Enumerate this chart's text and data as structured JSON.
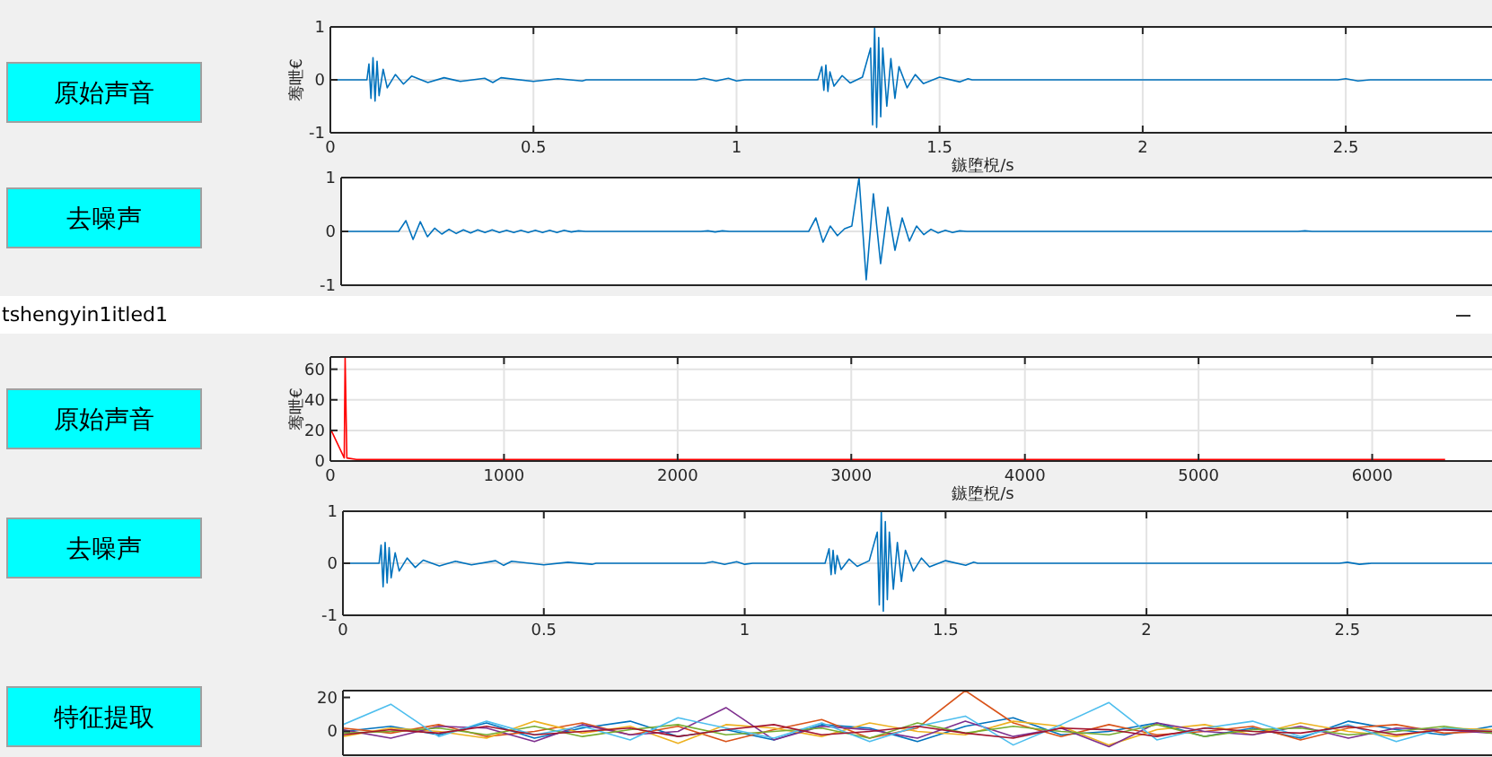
{
  "chart_data": [
    {
      "type": "line",
      "xlabel": "鏃堕棿/s",
      "ylabel": "骞呭€",
      "annotations": [
        "原始声音"
      ],
      "xlim": [
        0,
        2.86
      ],
      "xticks": [
        0,
        0.5,
        1,
        1.5,
        2,
        2.5
      ],
      "ylim": [
        -1,
        1
      ],
      "yticks": [
        -1,
        0,
        1
      ],
      "grid": true,
      "series": [
        {
          "color": "#0072bd",
          "x": [
            0,
            0.09,
            0.095,
            0.1,
            0.105,
            0.11,
            0.115,
            0.12,
            0.13,
            0.14,
            0.16,
            0.18,
            0.2,
            0.24,
            0.28,
            0.32,
            0.38,
            0.4,
            0.42,
            0.5,
            0.56,
            0.62,
            0.63,
            0.9,
            0.92,
            0.95,
            0.98,
            1.0,
            1.02,
            1.2,
            1.21,
            1.215,
            1.22,
            1.225,
            1.23,
            1.24,
            1.26,
            1.28,
            1.31,
            1.33,
            1.335,
            1.34,
            1.345,
            1.35,
            1.355,
            1.36,
            1.37,
            1.38,
            1.39,
            1.4,
            1.42,
            1.44,
            1.46,
            1.5,
            1.55,
            1.57,
            1.58,
            2.48,
            2.5,
            2.53,
            2.56,
            2.86
          ],
          "values": [
            0,
            0,
            0.3,
            -0.35,
            0.42,
            -0.4,
            0.35,
            -0.3,
            0.2,
            -0.15,
            0.1,
            -0.08,
            0.07,
            -0.05,
            0.04,
            -0.03,
            0.03,
            -0.05,
            0.04,
            -0.03,
            0.02,
            -0.02,
            0,
            0,
            0.03,
            -0.02,
            0.03,
            -0.02,
            0,
            0,
            0.25,
            -0.2,
            0.28,
            -0.22,
            0.15,
            -0.12,
            0.08,
            -0.06,
            0.05,
            0.6,
            -0.85,
            1.0,
            -0.9,
            0.8,
            -0.7,
            0.6,
            -0.5,
            0.4,
            -0.35,
            0.25,
            -0.15,
            0.1,
            -0.07,
            0.05,
            -0.04,
            0.02,
            0,
            0,
            0.02,
            -0.02,
            0,
            0
          ]
        }
      ]
    },
    {
      "type": "line",
      "annotations": [
        "去噪声"
      ],
      "categories": [
        null,
        null,
        null,
        null,
        null,
        null,
        null,
        null,
        null,
        null,
        null,
        null,
        null,
        null,
        null,
        null,
        null,
        null,
        null,
        null,
        null,
        null,
        null,
        null,
        null,
        null,
        null,
        null,
        null,
        null,
        null,
        null,
        null,
        null,
        null,
        null,
        null,
        null,
        null,
        null,
        null,
        null,
        null,
        null,
        null,
        null,
        null,
        null,
        null,
        null,
        null,
        null,
        null,
        null,
        null,
        null,
        null,
        null,
        null,
        null,
        null,
        null,
        null,
        null,
        null,
        null,
        null,
        null,
        null,
        null,
        null,
        null,
        null,
        null,
        null,
        null,
        null,
        null,
        null,
        null,
        null,
        null,
        null,
        null,
        null,
        null,
        null,
        null,
        null,
        null,
        null,
        null,
        null,
        null,
        null,
        null,
        null,
        null,
        null,
        null,
        null,
        null,
        null,
        null,
        null,
        null,
        null,
        null,
        null,
        null,
        null,
        null,
        null,
        null,
        null,
        null,
        null,
        null,
        null,
        null,
        null,
        null,
        null,
        null,
        null,
        null,
        null,
        null,
        null,
        null,
        null,
        null,
        null,
        null,
        null,
        null,
        null,
        null,
        null,
        null,
        null,
        null,
        null,
        null,
        null,
        null,
        null,
        null,
        null,
        null,
        null,
        null,
        null,
        null,
        null,
        null,
        null,
        null,
        null,
        null,
        null
      ],
      "ylim": [
        -1,
        1
      ],
      "yticks": [
        -1,
        0,
        1
      ],
      "grid": true,
      "tick_labels": "y",
      "series": [
        {
          "color": "#0072bd",
          "values": [
            0,
            0,
            0,
            0,
            0,
            0,
            0,
            0,
            0,
            0.2,
            -0.15,
            0.18,
            -0.1,
            0.06,
            -0.05,
            0.04,
            -0.04,
            0.03,
            -0.03,
            0.03,
            -0.02,
            0.03,
            -0.02,
            0.02,
            -0.02,
            0.02,
            -0.02,
            0.02,
            -0.02,
            0.02,
            -0.02,
            0.02,
            -0.01,
            0.01,
            0,
            0,
            0,
            0,
            0,
            0,
            0,
            0,
            0,
            0,
            0,
            0,
            0,
            0,
            0,
            0,
            0,
            0.01,
            -0.01,
            0.01,
            0,
            0,
            0,
            0,
            0,
            0,
            0,
            0,
            0,
            0,
            0,
            0,
            0.25,
            -0.2,
            0.1,
            -0.08,
            0.05,
            0.1,
            1.0,
            -0.9,
            0.7,
            -0.6,
            0.45,
            -0.35,
            0.25,
            -0.18,
            0.1,
            -0.06,
            0.04,
            -0.03,
            0.02,
            -0.02,
            0.01,
            0,
            0,
            0,
            0,
            0,
            0,
            0,
            0,
            0,
            0,
            0,
            0,
            0,
            0,
            0,
            0,
            0,
            0,
            0,
            0,
            0,
            0,
            0,
            0,
            0,
            0,
            0,
            0,
            0,
            0,
            0,
            0,
            0,
            0,
            0,
            0,
            0,
            0,
            0,
            0,
            0,
            0,
            0,
            0,
            0,
            0,
            0,
            0.01,
            0,
            0,
            0,
            0,
            0,
            0,
            0,
            0,
            0,
            0,
            0,
            0,
            0,
            0,
            0,
            0,
            0,
            0,
            0,
            0,
            0,
            0,
            0,
            0,
            0,
            0
          ]
        }
      ]
    },
    {
      "type": "other",
      "annotations": [
        "tshengyin1itled1"
      ]
    },
    {
      "type": "line",
      "xlabel": "鏃堕棿/s",
      "ylabel": "骞呭€",
      "annotations": [
        "原始声音"
      ],
      "xlim": [
        0,
        6690
      ],
      "xticks": [
        0,
        1000,
        2000,
        3000,
        4000,
        5000,
        6000
      ],
      "ylim": [
        0,
        68
      ],
      "yticks": [
        0,
        20,
        40,
        60
      ],
      "grid": true,
      "series": [
        {
          "color": "#ff0000",
          "x": [
            0,
            5,
            80,
            85,
            95,
            150,
            560,
            6420
          ],
          "values": [
            20,
            20,
            2,
            68,
            2,
            1,
            1,
            1
          ]
        }
      ]
    },
    {
      "type": "line",
      "annotations": [
        "去噪声"
      ],
      "xlim": [
        0,
        2.86
      ],
      "xticks": [
        0,
        0.5,
        1,
        1.5,
        2,
        2.5
      ],
      "ylim": [
        -1,
        1
      ],
      "yticks": [
        -1,
        0,
        1
      ],
      "grid": true,
      "series": [
        {
          "color": "#0072bd",
          "x": [
            0,
            0.09,
            0.095,
            0.1,
            0.105,
            0.11,
            0.115,
            0.12,
            0.13,
            0.14,
            0.16,
            0.18,
            0.2,
            0.24,
            0.28,
            0.32,
            0.38,
            0.4,
            0.42,
            0.5,
            0.56,
            0.62,
            0.63,
            0.9,
            0.92,
            0.95,
            0.98,
            1.0,
            1.02,
            1.2,
            1.21,
            1.215,
            1.22,
            1.225,
            1.23,
            1.24,
            1.26,
            1.28,
            1.31,
            1.33,
            1.335,
            1.34,
            1.345,
            1.35,
            1.355,
            1.36,
            1.37,
            1.38,
            1.39,
            1.4,
            1.42,
            1.44,
            1.46,
            1.5,
            1.55,
            1.57,
            1.58,
            2.48,
            2.5,
            2.53,
            2.56,
            2.86
          ],
          "values": [
            0,
            0,
            0.35,
            -0.45,
            0.4,
            -0.38,
            0.3,
            -0.28,
            0.2,
            -0.15,
            0.1,
            -0.08,
            0.06,
            -0.05,
            0.04,
            -0.03,
            0.05,
            -0.04,
            0.04,
            -0.03,
            0.02,
            -0.02,
            0,
            0,
            0.03,
            -0.02,
            0.03,
            -0.02,
            0,
            0,
            0.28,
            -0.22,
            0.25,
            -0.2,
            0.15,
            -0.12,
            0.08,
            -0.06,
            0.05,
            0.6,
            -0.8,
            1.0,
            -0.92,
            0.8,
            -0.7,
            0.6,
            -0.5,
            0.4,
            -0.35,
            0.25,
            -0.15,
            0.1,
            -0.07,
            0.05,
            -0.04,
            0.02,
            0,
            0,
            0.02,
            -0.02,
            0,
            0
          ]
        }
      ]
    },
    {
      "type": "line",
      "annotations": [
        "特征提取"
      ],
      "categories": [
        null,
        null,
        null,
        null,
        null,
        null,
        null,
        null,
        null,
        null,
        null,
        null,
        null,
        null,
        null,
        null,
        null,
        null,
        null,
        null,
        null,
        null,
        null,
        null,
        null
      ],
      "ylim": [
        -14,
        24
      ],
      "yticks": [
        0,
        20
      ],
      "tick_labels": "y",
      "series": [
        {
          "color": "#0072bd",
          "values": [
            0,
            3,
            -2,
            5,
            -4,
            2,
            6,
            -3,
            1,
            -5,
            4,
            2,
            -6,
            3,
            8,
            -2,
            0,
            5,
            -3,
            2,
            -4,
            6,
            1,
            -2,
            3
          ]
        },
        {
          "color": "#d95319",
          "values": [
            2,
            -1,
            4,
            -3,
            0,
            5,
            -2,
            3,
            -6,
            1,
            7,
            -4,
            2,
            24,
            5,
            -3,
            4,
            -2,
            0,
            3,
            -5,
            2,
            4,
            -1,
            0
          ]
        },
        {
          "color": "#edb120",
          "values": [
            -3,
            2,
            0,
            -4,
            6,
            -1,
            3,
            -7,
            4,
            2,
            -3,
            5,
            0,
            -2,
            6,
            3,
            -8,
            1,
            4,
            -2,
            5,
            0,
            -3,
            2,
            1
          ]
        },
        {
          "color": "#7e2f8e",
          "values": [
            1,
            -4,
            3,
            2,
            -6,
            4,
            -2,
            0,
            14,
            -5,
            3,
            1,
            -4,
            6,
            -3,
            2,
            -9,
            5,
            0,
            -2,
            3,
            -4,
            2,
            1,
            -1
          ]
        },
        {
          "color": "#77ac30",
          "values": [
            -1,
            0,
            2,
            -2,
            3,
            -3,
            1,
            4,
            -2,
            0,
            2,
            -4,
            5,
            -1,
            3,
            0,
            -2,
            4,
            -3,
            1,
            2,
            -2,
            0,
            3,
            -1
          ]
        },
        {
          "color": "#4dbeee",
          "values": [
            4,
            16,
            -3,
            6,
            -2,
            3,
            -5,
            8,
            2,
            -4,
            5,
            -6,
            3,
            9,
            -8,
            4,
            17,
            -5,
            2,
            6,
            -3,
            4,
            -6,
            2,
            0
          ]
        },
        {
          "color": "#a2142f",
          "values": [
            -2,
            1,
            -1,
            3,
            -2,
            0,
            2,
            -3,
            1,
            4,
            -2,
            0,
            3,
            -1,
            -4,
            2,
            1,
            -3,
            2,
            0,
            -1,
            3,
            -2,
            1,
            0
          ]
        }
      ]
    }
  ]
}
